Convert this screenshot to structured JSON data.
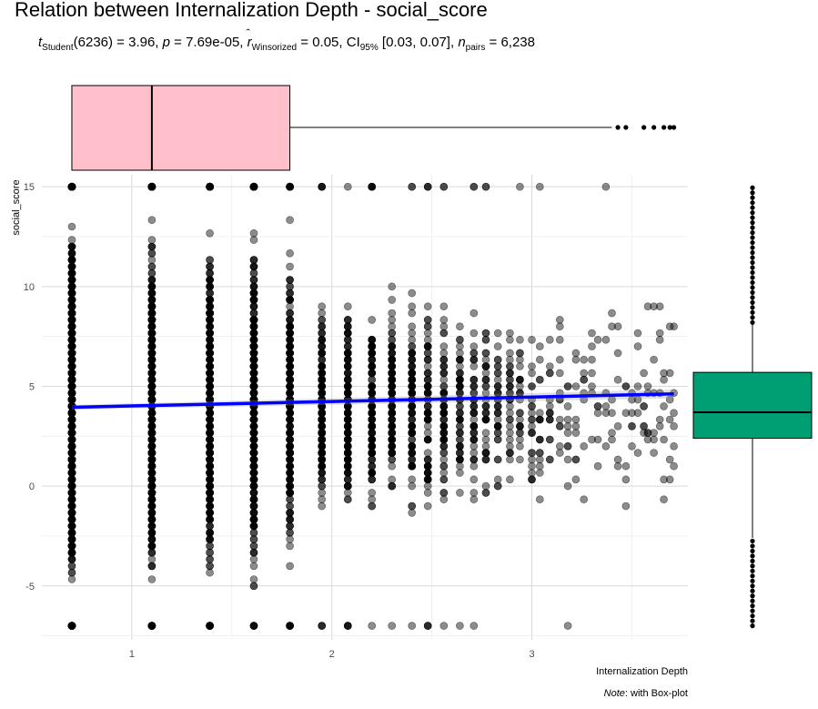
{
  "title": "Relation between Internalization Depth - social_score",
  "subtitle": {
    "t_letter": "t",
    "t_sub": "Student",
    "t_rest": "(6236) = 3.96, ",
    "p_letter": "p",
    "p_rest": " = 7.69e-05, ",
    "r_hat": "̂",
    "r_letter": "r",
    "r_sub": "Winsorized",
    "r_rest": " = 0.05, CI",
    "ci_sub": "95%",
    "ci_rest": " [0.03, 0.07], ",
    "n_letter": "n",
    "n_sub": "pairs",
    "n_rest": " = 6,238"
  },
  "note": {
    "word": "Note",
    "rest": ": with Box-plot"
  },
  "colors": {
    "x_box_fill": "#FFC0CB",
    "y_box_fill": "#009E73",
    "regression_line": "#0000FF",
    "point_fill": "#000000",
    "grid": "#d9d9d9"
  },
  "chart_data": {
    "type": "scatter",
    "xlabel": "Internalization Depth",
    "ylabel": "social_score",
    "xlim": [
      0.55,
      3.78
    ],
    "ylim": [
      -7.7,
      15.6
    ],
    "x_ticks": [
      1,
      2,
      3
    ],
    "y_ticks": [
      -5,
      0,
      5,
      10,
      15
    ],
    "grid": true,
    "point_opacity": 0.45,
    "n_pairs": 6238,
    "x_levels": [
      0.7,
      1.1,
      1.39,
      1.61,
      1.79,
      1.95,
      2.08,
      2.2,
      2.3,
      2.4,
      2.48,
      2.56,
      2.64,
      2.71,
      2.77,
      2.83,
      2.89,
      2.94,
      3.0,
      3.04,
      3.09,
      3.14,
      3.18,
      3.22,
      3.26,
      3.3,
      3.33,
      3.37,
      3.4,
      3.43,
      3.47,
      3.5,
      3.53,
      3.56,
      3.58,
      3.61,
      3.64,
      3.66,
      3.69,
      3.71
    ],
    "regression": {
      "x": [
        0.7,
        3.71
      ],
      "y": [
        3.95,
        4.62
      ]
    },
    "x_boxplot": {
      "q1": 0.7,
      "median": 1.1,
      "q3": 1.79,
      "whisker_low": 0.7,
      "whisker_high": 3.4,
      "outliers": [
        3.43,
        3.47,
        3.56,
        3.61,
        3.66,
        3.69,
        3.71
      ]
    },
    "y_boxplot": {
      "q1": 2.4,
      "median": 3.7,
      "q3": 5.7,
      "whisker_low": -2.6,
      "whisker_high": 15.0,
      "outliers_low_range": [
        -7.0,
        -2.7
      ]
    }
  }
}
